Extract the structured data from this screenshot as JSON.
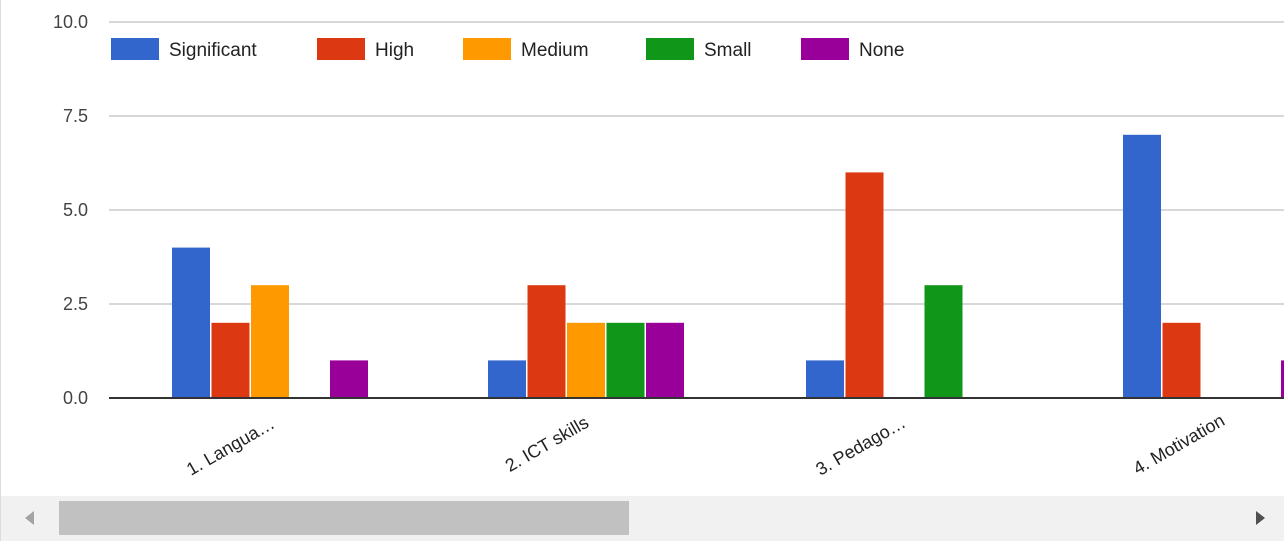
{
  "chart_data": {
    "type": "bar",
    "categories": [
      "1. Langua…",
      "2. ICT skills",
      "3. Pedago…",
      "4. Motivation"
    ],
    "series": [
      {
        "name": "Significant",
        "color": "#3366cc",
        "values": [
          4,
          1,
          1,
          7
        ]
      },
      {
        "name": "High",
        "color": "#dc3912",
        "values": [
          2,
          3,
          6,
          2
        ]
      },
      {
        "name": "Medium",
        "color": "#ff9900",
        "values": [
          3,
          2,
          0,
          0
        ]
      },
      {
        "name": "Small",
        "color": "#109618",
        "values": [
          0,
          2,
          3,
          0
        ]
      },
      {
        "name": "None",
        "color": "#990099",
        "values": [
          1,
          2,
          0,
          1
        ]
      }
    ],
    "y_ticks": [
      "0.0",
      "2.5",
      "5.0",
      "7.5",
      "10.0"
    ],
    "ylim": [
      0,
      10
    ],
    "grid": true,
    "legend_position": "top-left",
    "title": "",
    "xlabel": "",
    "ylabel": ""
  },
  "scrollbar": {
    "left_arrow_icon": "triangle-left-icon",
    "right_arrow_icon": "triangle-right-icon",
    "thumb_fraction": 0.44
  }
}
